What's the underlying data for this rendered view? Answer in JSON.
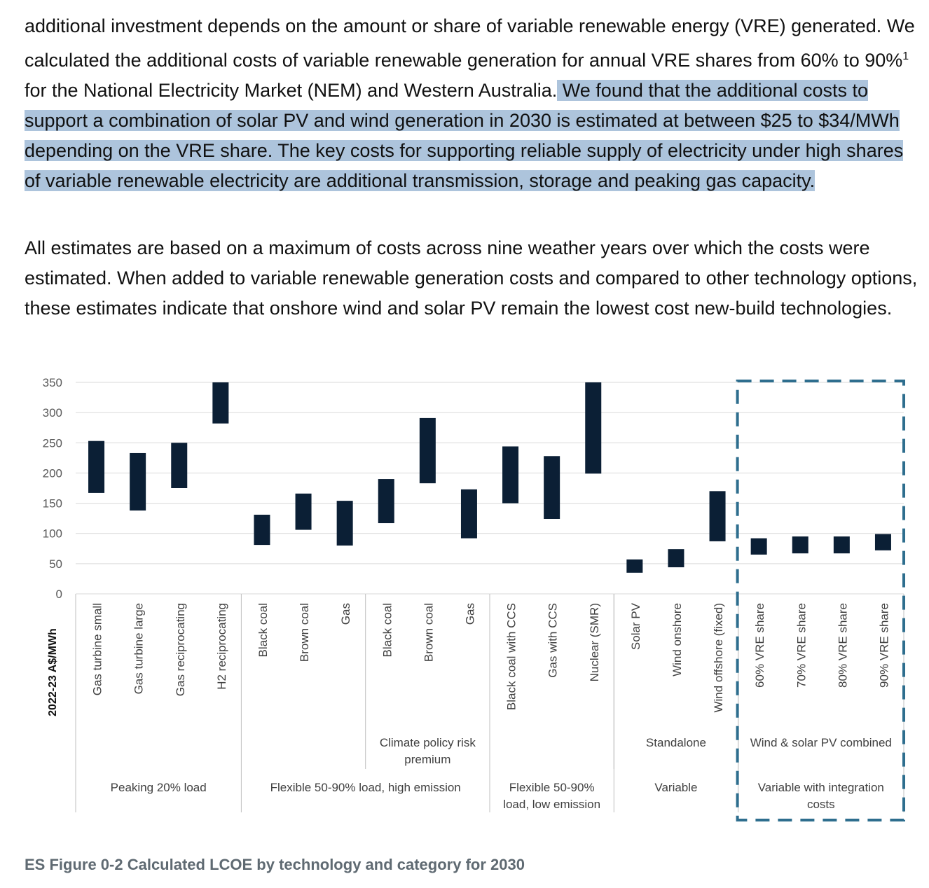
{
  "text": {
    "para1_a": "additional investment depends on the amount or share of variable renewable energy (VRE) generated. We calculated the additional costs of variable renewable generation for annual VRE shares from 60% to 90%",
    "para1_sup": "1",
    "para1_b": " for the National Electricity Market (NEM) and Western Australia.",
    "para1_highlight": " We found that the additional costs to support a combination of solar PV and wind generation in 2030 is estimated at between $25 to $34/MWh depending on the VRE share. The key costs for supporting reliable supply of electricity under high shares of variable renewable electricity are additional transmission, storage and peaking gas capacity. ",
    "para2": "All estimates are based on a maximum of costs across nine weather years over which the costs were estimated. When added to variable renewable generation costs and compared to other technology options, these estimates indicate that onshore wind and solar PV remain the lowest cost new-build technologies.",
    "caption": "ES Figure 0-2 Calculated LCOE by technology and category for 2030"
  },
  "colors": {
    "bar": "#0b1f35",
    "grid": "#d9d9d9",
    "highlight_box": "#2e6e8e",
    "highlight_text": "#adc4dc"
  },
  "chart_data": {
    "type": "bar",
    "subtype": "floating-range",
    "ylabel": "2022-23 A$/MWh",
    "ylim": [
      0,
      350
    ],
    "yticks": [
      0,
      50,
      100,
      150,
      200,
      250,
      300,
      350
    ],
    "grid": true,
    "categories": [
      "Gas turbine small",
      "Gas turbine large",
      "Gas reciprocating",
      "H2 reciprocating",
      "Black coal",
      "Brown coal",
      "Gas",
      "Black coal",
      "Brown coal",
      "Gas",
      "Black coal with CCS",
      "Gas with CCS",
      "Nuclear (SMR)",
      "Solar PV",
      "Wind onshore",
      "Wind offshore (fixed)",
      "60% VRE share",
      "70% VRE share",
      "80% VRE share",
      "90% VRE share"
    ],
    "series": [
      {
        "low": [
          167,
          138,
          175,
          282,
          81,
          106,
          80,
          117,
          183,
          92,
          150,
          124,
          199,
          35,
          44,
          87,
          65,
          67,
          67,
          72
        ],
        "high": [
          253,
          233,
          250,
          350,
          131,
          166,
          154,
          190,
          291,
          173,
          244,
          228,
          350,
          57,
          74,
          170,
          92,
          95,
          95,
          99
        ]
      }
    ],
    "subgroups": [
      {
        "label": "Climate policy risk premium",
        "start": 7,
        "end": 9
      },
      {
        "label": "Standalone",
        "start": 13,
        "end": 15
      },
      {
        "label": "Wind & solar PV combined",
        "start": 16,
        "end": 19
      }
    ],
    "groups": [
      {
        "label": "Peaking 20% load",
        "start": 0,
        "end": 3
      },
      {
        "label": "Flexible 50-90% load, high emission",
        "start": 4,
        "end": 9
      },
      {
        "label": "Flexible 50-90% load, low emission",
        "start": 10,
        "end": 12
      },
      {
        "label": "Variable",
        "start": 13,
        "end": 15
      },
      {
        "label": "Variable with integration costs",
        "start": 16,
        "end": 19
      }
    ],
    "highlighted_group": 4
  }
}
